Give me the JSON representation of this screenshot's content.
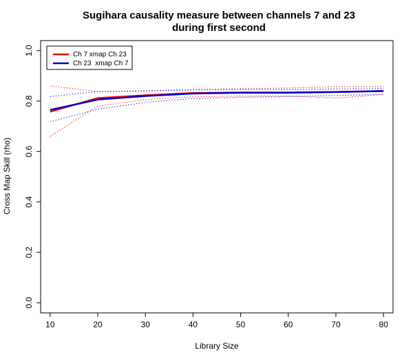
{
  "chart_data": {
    "type": "line",
    "title_lines": [
      "Sugihara causality measure between channels  7 and 23",
      "during first second"
    ],
    "xlabel": "Library Size",
    "ylabel": "Cross Map Skill (rho)",
    "xlim": [
      8,
      82
    ],
    "ylim": [
      -0.04,
      1.04
    ],
    "x_ticks": [
      10,
      20,
      30,
      40,
      50,
      60,
      70,
      80
    ],
    "y_ticks": [
      0.0,
      0.2,
      0.4,
      0.6,
      0.8,
      1.0
    ],
    "y_tick_labels": [
      "0.0",
      "0.2",
      "0.4",
      "0.6",
      "0.8",
      "1.0"
    ],
    "grid": false,
    "legend_position": "top-left",
    "x": [
      10,
      20,
      30,
      40,
      50,
      60,
      70,
      80
    ],
    "series": [
      {
        "name": "Ch 7 xmap Ch 23",
        "color": "#ff0000",
        "values": [
          0.758,
          0.812,
          0.823,
          0.832,
          0.834,
          0.834,
          0.836,
          0.84
        ],
        "upper": [
          0.86,
          0.838,
          0.841,
          0.846,
          0.849,
          0.852,
          0.857,
          0.857
        ],
        "lower": [
          0.66,
          0.78,
          0.805,
          0.817,
          0.82,
          0.82,
          0.812,
          0.826
        ]
      },
      {
        "name": "Ch 23  xmap Ch 7",
        "color": "#0000cc",
        "values": [
          0.765,
          0.806,
          0.82,
          0.83,
          0.833,
          0.833,
          0.836,
          0.84
        ],
        "upper": [
          0.818,
          0.838,
          0.84,
          0.844,
          0.846,
          0.846,
          0.848,
          0.85
        ],
        "lower": [
          0.718,
          0.768,
          0.795,
          0.81,
          0.815,
          0.818,
          0.822,
          0.827
        ]
      }
    ]
  }
}
